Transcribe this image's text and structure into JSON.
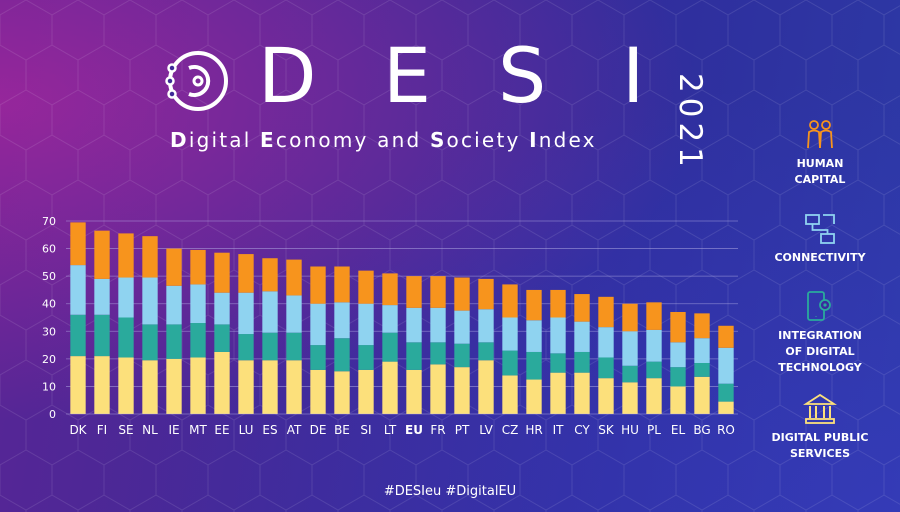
{
  "header": {
    "brand_letters": [
      "D",
      "E",
      "S",
      "I"
    ],
    "year": "2021",
    "subtitle_parts": [
      {
        "text": "D",
        "bold": true
      },
      {
        "text": "igital ",
        "bold": false
      },
      {
        "text": "E",
        "bold": true
      },
      {
        "text": "conomy and ",
        "bold": false
      },
      {
        "text": "S",
        "bold": true
      },
      {
        "text": "ociety ",
        "bold": false
      },
      {
        "text": "I",
        "bold": true
      },
      {
        "text": "ndex",
        "bold": false
      }
    ]
  },
  "footer": {
    "hashtags": "#DESIeu  #DigitalEU"
  },
  "legend": [
    {
      "label": "HUMAN\nCAPITAL",
      "icon": "people-icon",
      "color": "#f7941d"
    },
    {
      "label": "CONNECTIVITY",
      "icon": "network-icon",
      "color": "#8fd3f0"
    },
    {
      "label": "INTEGRATION\nOF DIGITAL\nTECHNOLOGY",
      "icon": "phone-gear-icon",
      "color": "#2aaa9c"
    },
    {
      "label": "DIGITAL PUBLIC\nSERVICES",
      "icon": "building-icon",
      "color": "#fce07b"
    }
  ],
  "chart_data": {
    "type": "bar",
    "stacked": true,
    "categories": [
      "DK",
      "FI",
      "SE",
      "NL",
      "IE",
      "MT",
      "EE",
      "LU",
      "ES",
      "AT",
      "DE",
      "BE",
      "SI",
      "LT",
      "EU",
      "FR",
      "PT",
      "LV",
      "CZ",
      "HR",
      "IT",
      "CY",
      "SK",
      "HU",
      "PL",
      "EL",
      "BG",
      "RO"
    ],
    "highlight_category": "EU",
    "ylim": [
      0,
      70
    ],
    "yticks": [
      0,
      10,
      20,
      30,
      40,
      50,
      60,
      70
    ],
    "grid": true,
    "series": [
      {
        "name": "DIGITAL PUBLIC SERVICES",
        "color": "#fce07b",
        "values": [
          21.0,
          21.0,
          20.5,
          19.5,
          20.0,
          20.5,
          22.5,
          19.5,
          19.5,
          19.5,
          16.0,
          15.5,
          16.0,
          19.0,
          16.0,
          18.0,
          17.0,
          19.5,
          14.0,
          12.5,
          15.0,
          15.0,
          13.0,
          11.5,
          13.0,
          10.0,
          13.5,
          4.5
        ]
      },
      {
        "name": "INTEGRATION OF DIGITAL TECHNOLOGY",
        "color": "#2aaa9c",
        "values": [
          15.0,
          15.0,
          14.5,
          13.0,
          12.5,
          12.5,
          10.0,
          9.5,
          10.0,
          10.0,
          9.0,
          12.0,
          9.0,
          10.5,
          10.0,
          8.0,
          8.5,
          6.5,
          9.0,
          10.0,
          7.0,
          7.5,
          7.5,
          6.0,
          6.0,
          7.0,
          5.0,
          6.5
        ]
      },
      {
        "name": "CONNECTIVITY",
        "color": "#8fd3f0",
        "values": [
          18.0,
          13.0,
          14.5,
          17.0,
          14.0,
          14.0,
          11.5,
          15.0,
          15.0,
          13.5,
          15.0,
          13.0,
          15.0,
          10.0,
          12.5,
          12.5,
          12.0,
          12.0,
          12.0,
          11.5,
          13.0,
          11.0,
          11.0,
          12.5,
          11.5,
          9.0,
          9.0,
          13.0
        ]
      },
      {
        "name": "HUMAN CAPITAL",
        "color": "#f7941d",
        "values": [
          15.5,
          17.5,
          16.0,
          15.0,
          13.5,
          12.5,
          14.5,
          14.0,
          12.0,
          13.0,
          13.5,
          13.0,
          12.0,
          11.5,
          11.5,
          11.5,
          12.0,
          11.0,
          12.0,
          11.0,
          10.0,
          10.0,
          11.0,
          10.0,
          10.0,
          11.0,
          9.0,
          8.0
        ]
      }
    ]
  }
}
